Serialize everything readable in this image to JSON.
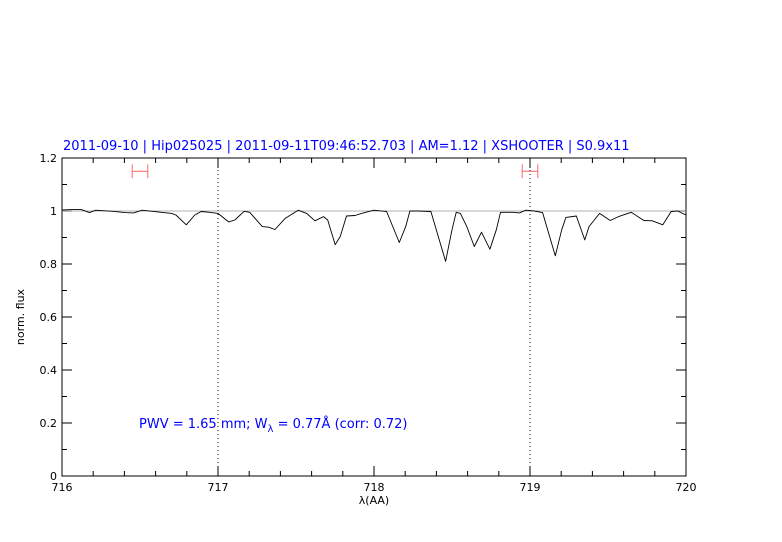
{
  "chart_data": {
    "type": "line",
    "title": "2011-09-10 | Hip025025 | 2011-09-11T09:46:52.703 | AM=1.12 | XSHOOTER | S0.9x11",
    "xlabel": "λ(AA)",
    "ylabel": "norm. flux",
    "xlim": [
      716,
      720
    ],
    "ylim": [
      0,
      1.2
    ],
    "xticks": [
      716,
      717,
      718,
      719,
      720
    ],
    "xtick_labels": [
      "716",
      "717",
      "718",
      "719",
      "720"
    ],
    "yticks": [
      0,
      0.2,
      0.4,
      0.6,
      0.8,
      1,
      1.2
    ],
    "ytick_labels": [
      "0",
      "0.2",
      "0.4",
      "0.6",
      "0.8",
      "1",
      "1.2"
    ],
    "grid": false,
    "annotation": {
      "prefix": "PWV = 1.65 mm; W",
      "subscript": "λ",
      "suffix": " = 0.77Å (corr: 0.72)"
    },
    "reference_line_y": 1.0,
    "vertical_markers": [
      717,
      719
    ],
    "intervals": [
      {
        "x": [
          716.45,
          716.55
        ],
        "y": 1.15
      },
      {
        "x": [
          718.95,
          719.05
        ],
        "y": 1.15
      }
    ],
    "colors": {
      "spectrum": "#000000",
      "reference": "#cc4444",
      "intervals": "#ff6666",
      "title": "#0000ff"
    },
    "series": [
      {
        "x": [
          716.0,
          716.081,
          716.122,
          716.176,
          716.216,
          716.324,
          716.405,
          716.459,
          716.514,
          716.622,
          716.703,
          716.73,
          716.797,
          716.851,
          716.892,
          716.946,
          717.0,
          717.068,
          717.108,
          717.168,
          717.203,
          717.284,
          717.324,
          717.365,
          717.432,
          717.514,
          717.568,
          717.622,
          717.676,
          717.703,
          717.751,
          717.784,
          717.824,
          717.878,
          717.919,
          718.0,
          718.081,
          718.162,
          718.203,
          718.23,
          718.284,
          718.365,
          718.459,
          718.5,
          718.527,
          718.554,
          718.595,
          718.643,
          718.689,
          718.743,
          718.784,
          718.811,
          718.892,
          718.932,
          718.973,
          719.027,
          719.081,
          719.162,
          719.203,
          719.23,
          719.297,
          719.351,
          719.378,
          719.446,
          719.514,
          719.568,
          719.649,
          719.73,
          719.784,
          719.851,
          719.905,
          719.946,
          720.0
        ],
        "y": [
          1.004,
          1.006,
          1.006,
          0.994,
          1.003,
          0.999,
          0.994,
          0.993,
          1.003,
          0.996,
          0.991,
          0.985,
          0.948,
          0.985,
          0.998,
          0.995,
          0.991,
          0.959,
          0.966,
          0.999,
          0.995,
          0.941,
          0.939,
          0.93,
          0.973,
          1.003,
          0.991,
          0.963,
          0.979,
          0.966,
          0.873,
          0.904,
          0.981,
          0.983,
          0.991,
          1.003,
          0.998,
          0.881,
          0.941,
          1.0,
          1.0,
          0.998,
          0.81,
          0.929,
          0.995,
          0.991,
          0.941,
          0.866,
          0.92,
          0.856,
          0.929,
          0.995,
          0.995,
          0.993,
          1.003,
          1.0,
          0.994,
          0.831,
          0.929,
          0.976,
          0.981,
          0.891,
          0.941,
          0.991,
          0.964,
          0.979,
          0.995,
          0.964,
          0.963,
          0.948,
          0.998,
          1.0,
          0.985
        ]
      }
    ]
  }
}
